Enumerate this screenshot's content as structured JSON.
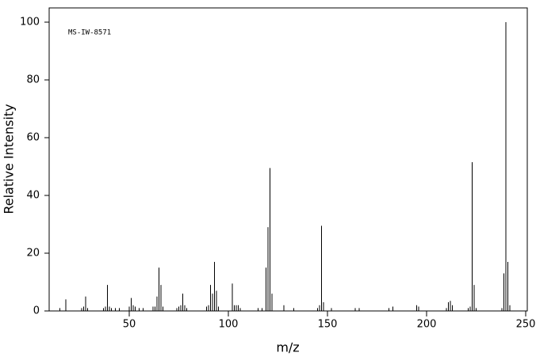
{
  "chart_data": {
    "type": "bar",
    "annotation": "MS-IW-8571",
    "x_label": "m/z",
    "y_label": "Relative Intensity",
    "color": "#000000",
    "x": [
      15,
      18,
      26,
      27,
      28,
      29,
      37,
      38,
      39,
      40,
      41,
      43,
      45,
      50,
      51,
      52,
      53,
      55,
      57,
      62,
      63,
      64,
      65,
      66,
      67,
      74,
      75,
      76,
      77,
      78,
      79,
      89,
      90,
      91,
      92,
      93,
      94,
      95,
      102,
      103,
      104,
      105,
      106,
      115,
      117,
      119,
      120,
      121,
      122,
      128,
      133,
      145,
      146,
      147,
      148,
      152,
      164,
      166,
      181,
      183,
      195,
      196,
      210,
      211,
      212,
      213,
      221,
      222,
      223,
      224,
      225,
      238,
      239,
      240,
      241,
      242
    ],
    "values": [
      1,
      4,
      1,
      1.5,
      5,
      1,
      1,
      1.5,
      9,
      1.5,
      1,
      1,
      1,
      1.5,
      4.5,
      2,
      1.5,
      1,
      1,
      1.5,
      1.5,
      5,
      15,
      9,
      1.5,
      1,
      1.5,
      2,
      6,
      2,
      1,
      1.5,
      2,
      9,
      6,
      17,
      7,
      1.5,
      9.5,
      2,
      2,
      2,
      1,
      1,
      1,
      15,
      29,
      49.5,
      6,
      2,
      1,
      1,
      2,
      29.5,
      3,
      1,
      1,
      1,
      1,
      1.5,
      2,
      1.5,
      1,
      3,
      3.5,
      2,
      1,
      1.5,
      51.5,
      9,
      1,
      1,
      13,
      100,
      17,
      2
    ],
    "xlim": [
      10,
      250
    ],
    "xticks": [
      50,
      100,
      150,
      200,
      250
    ],
    "ylim": [
      0,
      100
    ],
    "yticks": [
      0,
      20,
      40,
      60,
      80,
      100
    ]
  }
}
